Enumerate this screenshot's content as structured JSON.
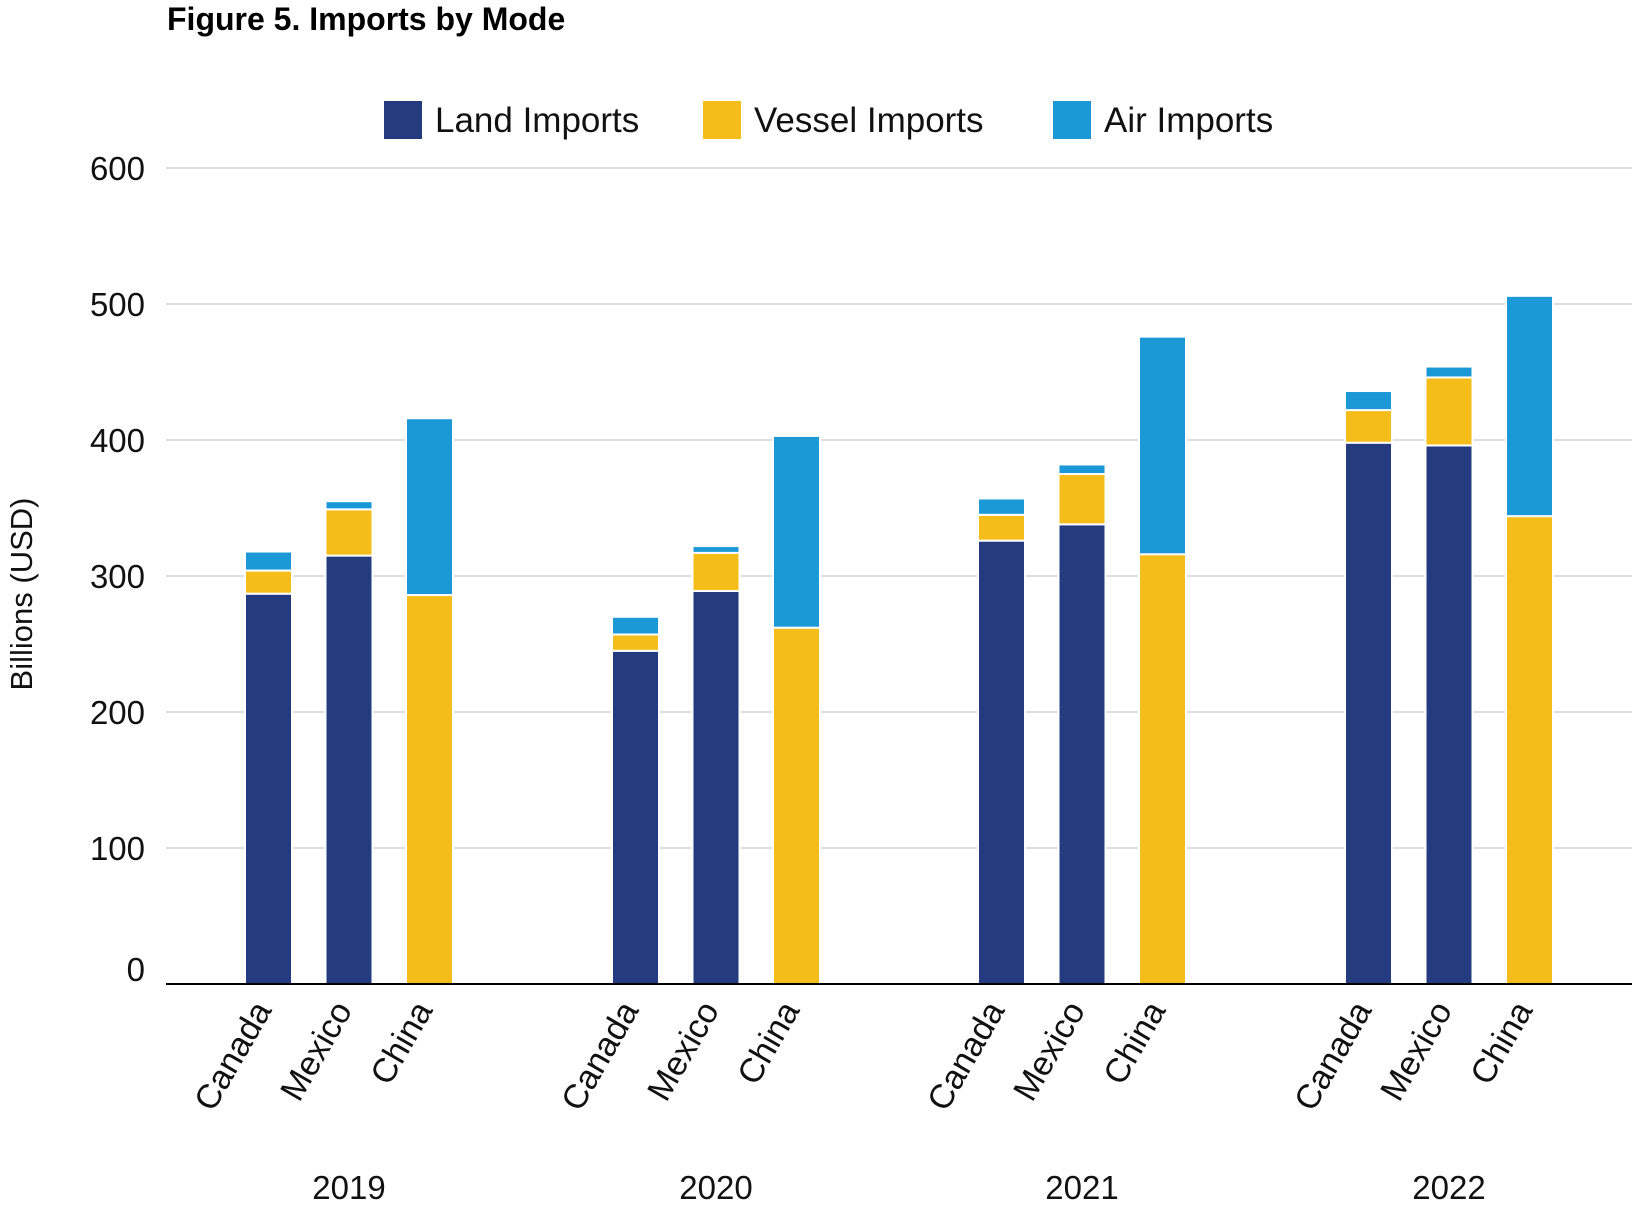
{
  "chart_data": {
    "type": "bar",
    "stacked": true,
    "title": "Figure 5. Imports by Mode",
    "ylabel": "Billions (USD)",
    "xlabel": "",
    "ylim": [
      0,
      600
    ],
    "yticks": [
      0,
      100,
      200,
      300,
      400,
      500,
      600
    ],
    "ytick_labels": [
      "0",
      "100",
      "200",
      "300",
      "400",
      "500",
      "600"
    ],
    "grid": true,
    "legend_position": "top-center",
    "groups": [
      "2019",
      "2020",
      "2021",
      "2022"
    ],
    "categories": [
      "Canada",
      "Mexico",
      "China"
    ],
    "series": [
      {
        "name": "Land Imports",
        "color": "#253b80",
        "values": [
          [
            287,
            315,
            0
          ],
          [
            245,
            289,
            0
          ],
          [
            326,
            338,
            0
          ],
          [
            398,
            396,
            0
          ]
        ]
      },
      {
        "name": "Vessel Imports",
        "color": "#f5bd1a",
        "values": [
          [
            17,
            34,
            286
          ],
          [
            12,
            28,
            262
          ],
          [
            19,
            37,
            316
          ],
          [
            24,
            50,
            344
          ]
        ]
      },
      {
        "name": "Air Imports",
        "color": "#1a99d6",
        "values": [
          [
            14,
            6,
            130
          ],
          [
            13,
            5,
            141
          ],
          [
            12,
            7,
            160
          ],
          [
            14,
            8,
            162
          ]
        ]
      }
    ]
  }
}
